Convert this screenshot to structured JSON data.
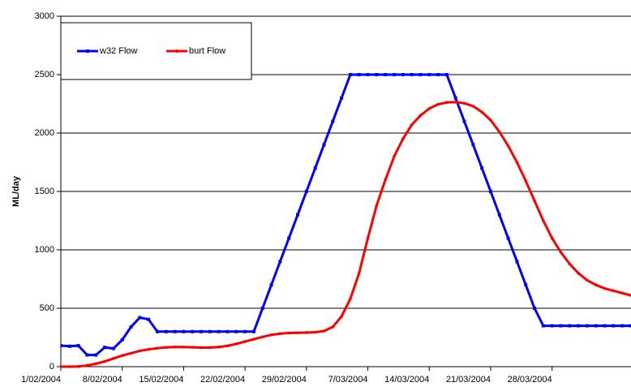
{
  "chart_data": {
    "type": "line",
    "y_label": "ML/day",
    "x": [
      "1/02/2004",
      "2/02/2004",
      "3/02/2004",
      "4/02/2004",
      "5/02/2004",
      "6/02/2004",
      "7/02/2004",
      "8/02/2004",
      "9/02/2004",
      "10/02/2004",
      "11/02/2004",
      "12/02/2004",
      "13/02/2004",
      "14/02/2004",
      "15/02/2004",
      "16/02/2004",
      "17/02/2004",
      "18/02/2004",
      "19/02/2004",
      "20/02/2004",
      "21/02/2004",
      "22/02/2004",
      "23/02/2004",
      "24/02/2004",
      "25/02/2004",
      "26/02/2004",
      "27/02/2004",
      "28/02/2004",
      "29/02/2004",
      "1/03/2004",
      "2/03/2004",
      "3/03/2004",
      "4/03/2004",
      "5/03/2004",
      "6/03/2004",
      "7/03/2004",
      "8/03/2004",
      "9/03/2004",
      "10/03/2004",
      "11/03/2004",
      "12/03/2004",
      "13/03/2004",
      "14/03/2004",
      "15/03/2004",
      "16/03/2004",
      "17/03/2004",
      "18/03/2004",
      "19/03/2004",
      "20/03/2004",
      "21/03/2004",
      "22/03/2004",
      "23/03/2004",
      "24/03/2004",
      "25/03/2004",
      "26/03/2004",
      "27/03/2004",
      "28/03/2004",
      "29/03/2004",
      "30/03/2004",
      "31/03/2004",
      "1/04/2004",
      "2/04/2004",
      "3/04/2004",
      "4/04/2004",
      "5/04/2004",
      "6/04/2004"
    ],
    "series": [
      {
        "name": "w32 Flow",
        "color": "#0000ff",
        "marker": "square",
        "values": [
          180,
          175,
          180,
          100,
          100,
          165,
          155,
          230,
          340,
          420,
          405,
          300,
          300,
          300,
          300,
          300,
          300,
          300,
          300,
          300,
          300,
          300,
          300,
          500,
          700,
          900,
          1100,
          1300,
          1500,
          1700,
          1900,
          2100,
          2300,
          2500,
          2500,
          2500,
          2500,
          2500,
          2500,
          2500,
          2500,
          2500,
          2500,
          2500,
          2500,
          2300,
          2100,
          1900,
          1700,
          1500,
          1300,
          1100,
          900,
          700,
          500,
          350,
          350,
          350,
          350,
          350,
          350,
          350,
          350,
          350,
          350,
          350
        ]
      },
      {
        "name": "burt Flow",
        "color": "#ff0000",
        "marker": "circle",
        "values": [
          0,
          0,
          2,
          10,
          25,
          45,
          70,
          95,
          115,
          135,
          148,
          158,
          165,
          168,
          168,
          166,
          163,
          163,
          168,
          178,
          195,
          215,
          235,
          255,
          272,
          283,
          288,
          290,
          292,
          295,
          305,
          340,
          430,
          580,
          800,
          1100,
          1380,
          1600,
          1800,
          1950,
          2070,
          2150,
          2210,
          2245,
          2262,
          2265,
          2255,
          2230,
          2180,
          2110,
          2010,
          1890,
          1750,
          1590,
          1420,
          1250,
          1100,
          980,
          880,
          800,
          740,
          700,
          670,
          650,
          630,
          610
        ]
      }
    ],
    "xlim": [
      "1/02/2004",
      "6/04/2004"
    ],
    "xticks": [
      "1/02/2004",
      "8/02/2004",
      "15/02/2004",
      "22/02/2004",
      "29/02/2004",
      "7/03/2004",
      "14/03/2004",
      "21/03/2004",
      "28/03/2004"
    ],
    "ylim": [
      0,
      3000
    ],
    "yticks": [
      0,
      500,
      1000,
      1500,
      2000,
      2500,
      3000
    ],
    "grid": true,
    "legend": "upper left"
  }
}
